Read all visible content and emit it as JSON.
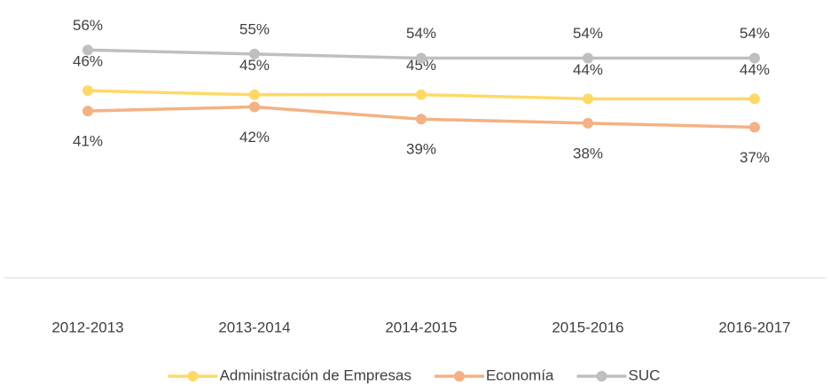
{
  "chart_data": {
    "type": "line",
    "categories": [
      "2012-2013",
      "2013-2014",
      "2014-2015",
      "2015-2016",
      "2016-2017"
    ],
    "series": [
      {
        "name": "Administración de Empresas",
        "color": "#ffd966",
        "values": [
          46,
          45,
          45,
          44,
          44
        ],
        "value_labels": [
          "46%",
          "45%",
          "45%",
          "44%",
          "44%"
        ]
      },
      {
        "name": "Economía",
        "color": "#f4b183",
        "values": [
          41,
          42,
          39,
          38,
          37
        ],
        "value_labels": [
          "41%",
          "42%",
          "39%",
          "38%",
          "37%"
        ]
      },
      {
        "name": "SUC",
        "color": "#bfbfbf",
        "values": [
          56,
          55,
          54,
          54,
          54
        ],
        "value_labels": [
          "56%",
          "55%",
          "54%",
          "54%",
          "54%"
        ]
      }
    ],
    "ylim": [
      0,
      60
    ],
    "legend": "bottom"
  }
}
